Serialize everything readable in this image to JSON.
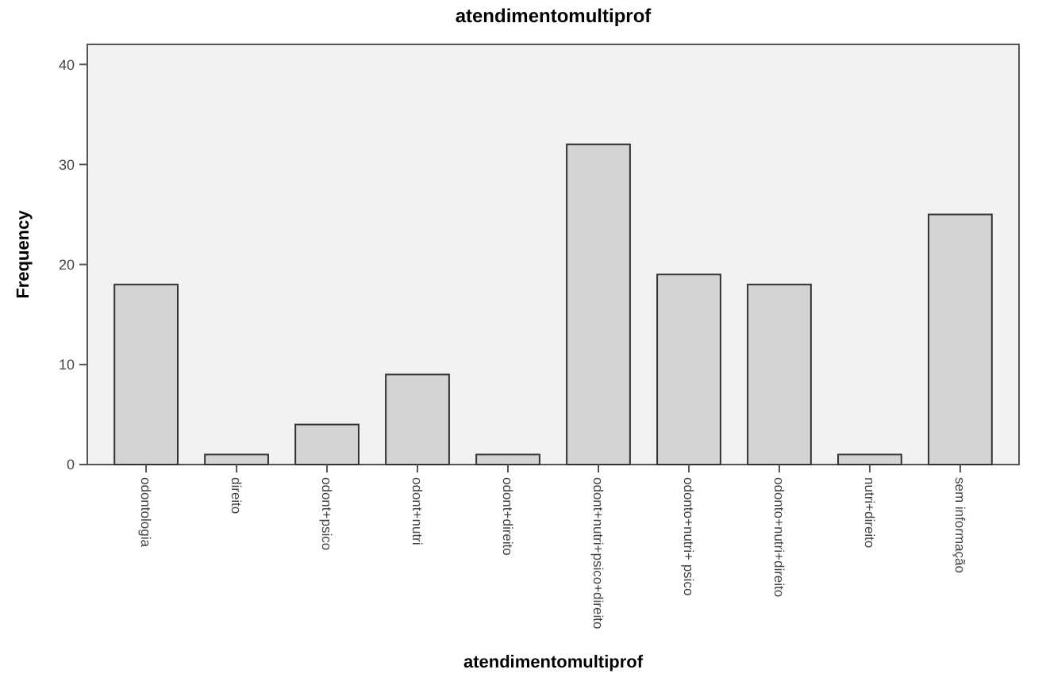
{
  "chart_data": {
    "type": "bar",
    "title": "atendimentomultiprof",
    "xlabel": "atendimentomultiprof",
    "ylabel": "Frequency",
    "categories": [
      "odontologia",
      "direito",
      "odont+psico",
      "odont+nutri",
      "odont+direito",
      "odont+nutri+psico+direito",
      "odonto+nutri+ psico",
      "odonto+nutri+direito",
      "nutri+direito",
      "sem informação"
    ],
    "values": [
      18,
      1,
      4,
      9,
      1,
      32,
      19,
      18,
      1,
      25
    ],
    "color": "#d4d4d4",
    "ylim": [
      0,
      42
    ],
    "yticks": [
      0,
      10,
      20,
      30,
      40
    ],
    "grid": false
  }
}
